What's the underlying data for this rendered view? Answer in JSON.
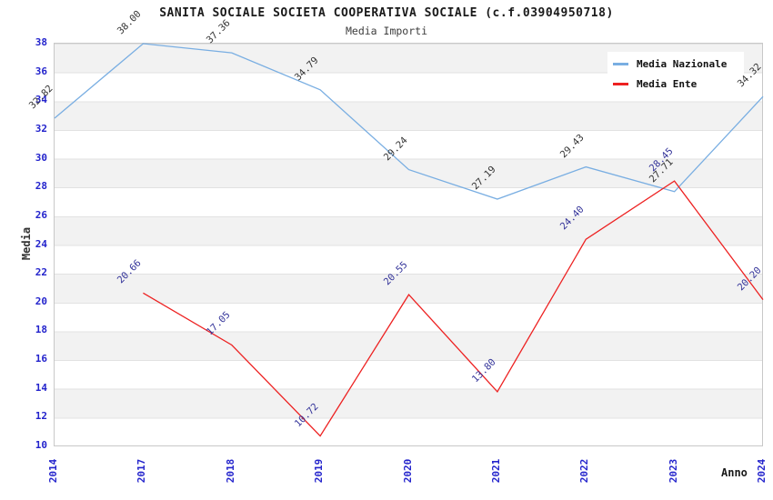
{
  "title": "SANITA SOCIALE SOCIETA COOPERATIVA SOCIALE (c.f.03904950718)",
  "subtitle": "Media Importi",
  "colors": {
    "series_nazionale": "#79AEE2",
    "series_ente": "#ED2121",
    "axis_tick_text": "#2323CC",
    "label_nazionale_text": "#333333",
    "label_ente_text": "#333399",
    "band_gray": "#F2F2F2",
    "gridline": "#E2E2E2",
    "plot_border": "#C8C8C8"
  },
  "chart_data": {
    "type": "line",
    "title": "SANITA SOCIALE SOCIETA COOPERATIVA SOCIALE (c.f.03904950718)",
    "subtitle": "Media Importi",
    "xlabel": "Anno",
    "ylabel": "Media",
    "categories": [
      "2014",
      "2017",
      "2018",
      "2019",
      "2020",
      "2021",
      "2022",
      "2023",
      "2024"
    ],
    "series": [
      {
        "name": "Media Nazionale",
        "color": "#79AEE2",
        "label_color": "#333333",
        "values": [
          32.82,
          38.0,
          37.36,
          34.79,
          29.24,
          27.19,
          29.43,
          27.71,
          34.32
        ]
      },
      {
        "name": "Media Ente",
        "color": "#ED2121",
        "label_color": "#333399",
        "values": [
          null,
          20.66,
          17.05,
          10.72,
          20.55,
          13.8,
          24.4,
          28.45,
          20.2
        ]
      }
    ],
    "ylim": [
      10,
      38
    ],
    "yticks": [
      10,
      12,
      14,
      16,
      18,
      20,
      22,
      24,
      26,
      28,
      30,
      32,
      34,
      36,
      38
    ],
    "ytick_step": 2,
    "grid": true,
    "background_bands": true,
    "legend_position": "top-right",
    "legend_entries": [
      "Media Nazionale",
      "Media Ente"
    ]
  }
}
